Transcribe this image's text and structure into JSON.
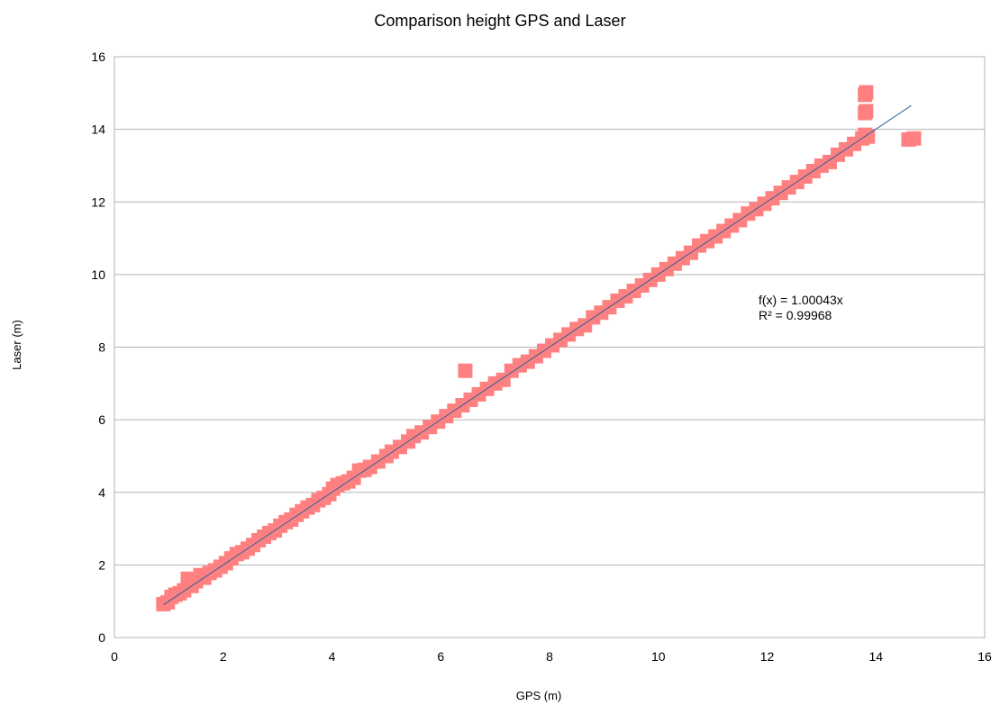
{
  "chart_data": {
    "type": "scatter",
    "title": "Comparison height GPS and Laser",
    "xlabel": "GPS (m)",
    "ylabel": "Laser (m)",
    "xlim": [
      0,
      16
    ],
    "ylim": [
      0,
      16
    ],
    "xticks": [
      "0",
      "2",
      "4",
      "6",
      "8",
      "10",
      "12",
      "14",
      "16"
    ],
    "yticks": [
      "0",
      "2",
      "4",
      "6",
      "8",
      "10",
      "12",
      "14",
      "16"
    ],
    "grid": true,
    "legend": "none",
    "marker_color": "#ff8080",
    "trend_color": "#2a6099",
    "series": [
      {
        "points": [
          [
            0.9,
            0.92
          ],
          [
            0.98,
            0.97
          ],
          [
            1.05,
            1.12
          ],
          [
            1.12,
            1.18
          ],
          [
            1.2,
            1.22
          ],
          [
            1.28,
            1.3
          ],
          [
            1.35,
            1.62
          ],
          [
            1.42,
            1.42
          ],
          [
            1.5,
            1.55
          ],
          [
            1.58,
            1.72
          ],
          [
            1.65,
            1.65
          ],
          [
            1.75,
            1.78
          ],
          [
            1.85,
            1.85
          ],
          [
            1.95,
            1.95
          ],
          [
            2.05,
            2.05
          ],
          [
            2.15,
            2.18
          ],
          [
            2.25,
            2.3
          ],
          [
            2.35,
            2.35
          ],
          [
            2.45,
            2.45
          ],
          [
            2.55,
            2.55
          ],
          [
            2.65,
            2.68
          ],
          [
            2.75,
            2.78
          ],
          [
            2.85,
            2.88
          ],
          [
            2.95,
            2.95
          ],
          [
            3.05,
            3.08
          ],
          [
            3.15,
            3.18
          ],
          [
            3.25,
            3.25
          ],
          [
            3.35,
            3.38
          ],
          [
            3.45,
            3.48
          ],
          [
            3.55,
            3.58
          ],
          [
            3.65,
            3.65
          ],
          [
            3.75,
            3.78
          ],
          [
            3.85,
            3.85
          ],
          [
            3.95,
            3.95
          ],
          [
            4.02,
            4.1
          ],
          [
            4.1,
            4.2
          ],
          [
            4.2,
            4.25
          ],
          [
            4.3,
            4.3
          ],
          [
            4.4,
            4.4
          ],
          [
            4.5,
            4.6
          ],
          [
            4.6,
            4.62
          ],
          [
            4.7,
            4.7
          ],
          [
            4.85,
            4.85
          ],
          [
            5.0,
            5.0
          ],
          [
            5.1,
            5.12
          ],
          [
            5.25,
            5.25
          ],
          [
            5.4,
            5.4
          ],
          [
            5.5,
            5.55
          ],
          [
            5.65,
            5.65
          ],
          [
            5.8,
            5.8
          ],
          [
            5.95,
            5.95
          ],
          [
            6.1,
            6.1
          ],
          [
            6.25,
            6.25
          ],
          [
            6.4,
            6.4
          ],
          [
            6.45,
            7.35
          ],
          [
            6.55,
            6.55
          ],
          [
            6.7,
            6.7
          ],
          [
            6.85,
            6.85
          ],
          [
            7.0,
            7.0
          ],
          [
            7.15,
            7.1
          ],
          [
            7.3,
            7.35
          ],
          [
            7.45,
            7.5
          ],
          [
            7.6,
            7.6
          ],
          [
            7.75,
            7.75
          ],
          [
            7.9,
            7.9
          ],
          [
            8.05,
            8.05
          ],
          [
            8.2,
            8.2
          ],
          [
            8.35,
            8.35
          ],
          [
            8.5,
            8.5
          ],
          [
            8.65,
            8.6
          ],
          [
            8.8,
            8.82
          ],
          [
            8.95,
            8.95
          ],
          [
            9.1,
            9.1
          ],
          [
            9.25,
            9.28
          ],
          [
            9.4,
            9.4
          ],
          [
            9.55,
            9.55
          ],
          [
            9.7,
            9.7
          ],
          [
            9.85,
            9.85
          ],
          [
            10.0,
            10.0
          ],
          [
            10.15,
            10.15
          ],
          [
            10.3,
            10.3
          ],
          [
            10.45,
            10.45
          ],
          [
            10.6,
            10.6
          ],
          [
            10.75,
            10.8
          ],
          [
            10.9,
            10.92
          ],
          [
            11.05,
            11.05
          ],
          [
            11.2,
            11.2
          ],
          [
            11.35,
            11.35
          ],
          [
            11.5,
            11.5
          ],
          [
            11.65,
            11.68
          ],
          [
            11.8,
            11.8
          ],
          [
            11.95,
            11.95
          ],
          [
            12.1,
            12.1
          ],
          [
            12.25,
            12.25
          ],
          [
            12.4,
            12.4
          ],
          [
            12.55,
            12.55
          ],
          [
            12.7,
            12.7
          ],
          [
            12.85,
            12.85
          ],
          [
            13.0,
            13.0
          ],
          [
            13.15,
            13.1
          ],
          [
            13.3,
            13.3
          ],
          [
            13.45,
            13.45
          ],
          [
            13.6,
            13.6
          ],
          [
            13.75,
            13.75
          ],
          [
            13.8,
            13.85
          ],
          [
            13.85,
            13.8
          ],
          [
            13.8,
            14.45
          ],
          [
            13.82,
            14.5
          ],
          [
            13.8,
            14.95
          ],
          [
            13.82,
            15.02
          ],
          [
            14.6,
            13.72
          ],
          [
            14.7,
            13.75
          ]
        ]
      }
    ],
    "trendline": {
      "x_range": [
        0.9,
        14.65
      ],
      "slope": 1.00043,
      "equation": "f(x) = 1.00043x",
      "r_squared": "R² = 0.99968"
    }
  }
}
